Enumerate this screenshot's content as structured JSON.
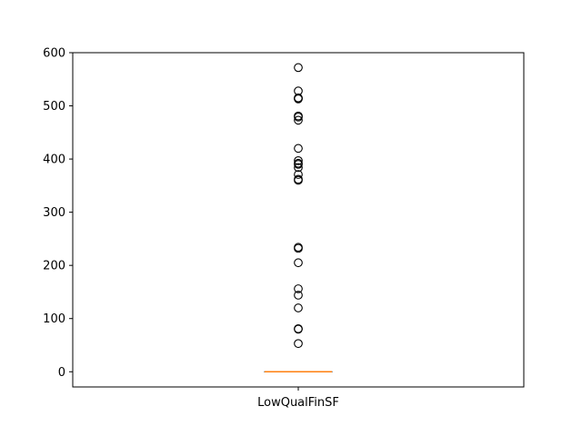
{
  "chart_data": {
    "type": "box",
    "title": "",
    "xlabel": "",
    "ylabel": "",
    "categories": [
      "LowQualFinSF"
    ],
    "ylim": [
      -28.6,
      600
    ],
    "yticks": [
      0,
      100,
      200,
      300,
      400,
      500,
      600
    ],
    "grid": false,
    "box": {
      "min": 0,
      "q1": 0,
      "median": 0,
      "q3": 0,
      "max": 0,
      "fliers": [
        53,
        80,
        81,
        120,
        144,
        156,
        205,
        232,
        234,
        360,
        362,
        371,
        384,
        390,
        392,
        397,
        420,
        473,
        479,
        481,
        513,
        514,
        515,
        528,
        572
      ]
    },
    "colors": {
      "median": "#ff7f0e",
      "box": "#000000",
      "flier": "#000000"
    }
  }
}
